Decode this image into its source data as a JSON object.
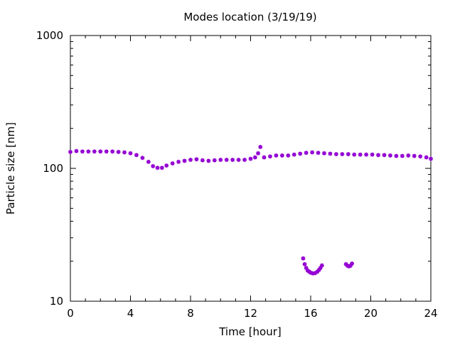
{
  "chart_data": {
    "type": "scatter",
    "title": "Modes location (3/19/19)",
    "xlabel": "Time [hour]",
    "ylabel": "Particle size [nm]",
    "xlim": [
      0,
      24
    ],
    "ylim": [
      10,
      1000
    ],
    "yscale": "log",
    "x_ticks": [
      0,
      4,
      8,
      12,
      16,
      20,
      24
    ],
    "x_tick_labels": [
      "0",
      "4",
      "8",
      "12",
      "16",
      "20",
      "24"
    ],
    "y_ticks": [
      10,
      100,
      1000
    ],
    "y_tick_labels": [
      "10",
      "100",
      "1000"
    ],
    "grid": false,
    "marker_color": "#9400d3",
    "series": [
      {
        "values": [
          [
            0.0,
            133
          ],
          [
            0.4,
            135
          ],
          [
            0.8,
            134
          ],
          [
            1.2,
            134
          ],
          [
            1.6,
            134
          ],
          [
            2.0,
            134
          ],
          [
            2.4,
            134
          ],
          [
            2.8,
            134
          ],
          [
            3.2,
            133
          ],
          [
            3.6,
            132
          ],
          [
            4.0,
            130
          ],
          [
            4.4,
            126
          ],
          [
            4.8,
            120
          ],
          [
            5.2,
            112
          ],
          [
            5.5,
            104
          ],
          [
            5.8,
            101
          ],
          [
            6.1,
            101
          ],
          [
            6.4,
            105
          ],
          [
            6.8,
            109
          ],
          [
            7.2,
            112
          ],
          [
            7.6,
            114
          ],
          [
            8.0,
            116
          ],
          [
            8.4,
            117
          ],
          [
            8.8,
            115
          ],
          [
            9.2,
            114
          ],
          [
            9.6,
            115
          ],
          [
            10.0,
            116
          ],
          [
            10.4,
            116
          ],
          [
            10.8,
            116
          ],
          [
            11.2,
            116
          ],
          [
            11.6,
            116
          ],
          [
            12.0,
            118
          ],
          [
            12.3,
            121
          ],
          [
            12.5,
            130
          ],
          [
            12.65,
            145
          ],
          [
            12.9,
            121
          ],
          [
            13.3,
            123
          ],
          [
            13.7,
            125
          ],
          [
            14.1,
            125
          ],
          [
            14.5,
            125
          ],
          [
            14.9,
            127
          ],
          [
            15.3,
            129
          ],
          [
            15.7,
            131
          ],
          [
            16.1,
            132
          ],
          [
            16.5,
            131
          ],
          [
            16.9,
            130
          ],
          [
            17.3,
            129
          ],
          [
            17.7,
            128
          ],
          [
            18.1,
            128
          ],
          [
            18.5,
            128
          ],
          [
            18.9,
            127
          ],
          [
            19.3,
            127
          ],
          [
            19.7,
            127
          ],
          [
            20.1,
            127
          ],
          [
            20.5,
            126
          ],
          [
            20.9,
            126
          ],
          [
            21.3,
            125
          ],
          [
            21.7,
            124
          ],
          [
            22.1,
            124
          ],
          [
            22.5,
            125
          ],
          [
            22.9,
            124
          ],
          [
            23.3,
            123
          ],
          [
            23.7,
            121
          ],
          [
            24.0,
            118
          ]
        ]
      },
      {
        "values": [
          [
            15.5,
            21
          ],
          [
            15.6,
            19
          ],
          [
            15.7,
            17.8
          ],
          [
            15.8,
            17
          ],
          [
            15.9,
            16.7
          ],
          [
            16.0,
            16.4
          ],
          [
            16.15,
            16.2
          ],
          [
            16.3,
            16.3
          ],
          [
            16.45,
            16.7
          ],
          [
            16.55,
            17.2
          ],
          [
            16.65,
            17.8
          ],
          [
            16.75,
            18.6
          ],
          [
            18.35,
            19.0
          ],
          [
            18.45,
            18.5
          ],
          [
            18.55,
            18.3
          ],
          [
            18.65,
            18.5
          ],
          [
            18.75,
            19.2
          ]
        ]
      }
    ]
  }
}
